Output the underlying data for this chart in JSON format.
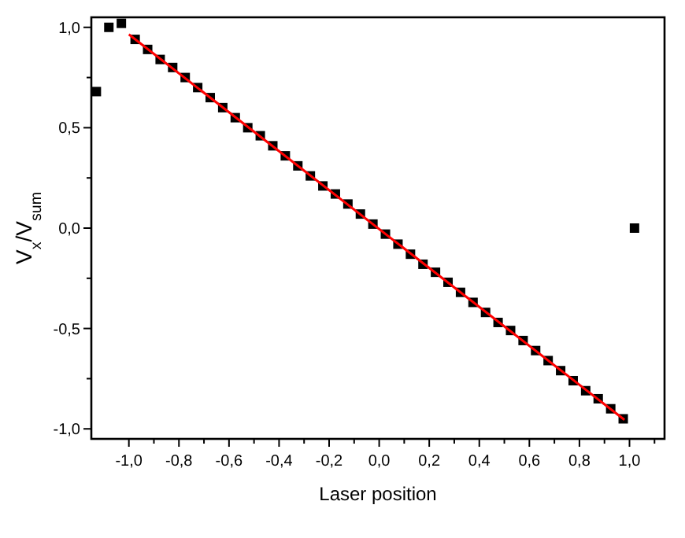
{
  "chart_data": {
    "type": "scatter",
    "xlabel": "Laser position",
    "ylabel": "V$_{x}$/V$_{sum}$",
    "xlim": [
      -1.15,
      1.14
    ],
    "ylim": [
      -1.05,
      1.05
    ],
    "xticks": [
      {
        "value": -1,
        "label": "-1,0"
      },
      {
        "value": -0.9,
        "label": null
      },
      {
        "value": -0.8,
        "label": "-0,8"
      },
      {
        "value": -0.7,
        "label": null
      },
      {
        "value": -0.6,
        "label": "-0,6"
      },
      {
        "value": -0.5,
        "label": null
      },
      {
        "value": -0.4,
        "label": "-0,4"
      },
      {
        "value": -0.3,
        "label": null
      },
      {
        "value": -0.2,
        "label": "-0,2"
      },
      {
        "value": -0.1,
        "label": null
      },
      {
        "value": 0,
        "label": "0,0"
      },
      {
        "value": 0.1,
        "label": null
      },
      {
        "value": 0.2,
        "label": "0,2"
      },
      {
        "value": 0.3,
        "label": null
      },
      {
        "value": 0.4,
        "label": "0,4"
      },
      {
        "value": 0.5,
        "label": null
      },
      {
        "value": 0.6,
        "label": "0,6"
      },
      {
        "value": 0.7,
        "label": null
      },
      {
        "value": 0.8,
        "label": "0,8"
      },
      {
        "value": 0.9,
        "label": null
      },
      {
        "value": 1,
        "label": "1,0"
      },
      {
        "value": 1.1,
        "label": null
      }
    ],
    "yticks": [
      {
        "value": -1,
        "label": "-1,0"
      },
      {
        "value": -0.75,
        "label": null
      },
      {
        "value": -0.5,
        "label": "-0,5"
      },
      {
        "value": -0.25,
        "label": null
      },
      {
        "value": 0,
        "label": "0,0"
      },
      {
        "value": 0.25,
        "label": null
      },
      {
        "value": 0.5,
        "label": "0,5"
      },
      {
        "value": 0.75,
        "label": null
      },
      {
        "value": 1,
        "label": "1,0"
      }
    ],
    "grid": false,
    "series": [
      {
        "color": "#000000",
        "marker": "square",
        "x": [
          -1.13,
          -1.08,
          -1.03,
          -0.975,
          -0.925,
          -0.875,
          -0.825,
          -0.775,
          -0.725,
          -0.675,
          -0.625,
          -0.575,
          -0.525,
          -0.475,
          -0.425,
          -0.375,
          -0.325,
          -0.275,
          -0.225,
          -0.175,
          -0.125,
          -0.075,
          -0.025,
          0.025,
          0.075,
          0.125,
          0.175,
          0.225,
          0.275,
          0.325,
          0.375,
          0.425,
          0.475,
          0.525,
          0.575,
          0.625,
          0.675,
          0.725,
          0.775,
          0.825,
          0.875,
          0.925,
          0.975,
          1.02
        ],
        "values": [
          0.68,
          1.0,
          1.02,
          0.94,
          0.89,
          0.84,
          0.8,
          0.75,
          0.7,
          0.65,
          0.6,
          0.55,
          0.5,
          0.46,
          0.41,
          0.36,
          0.31,
          0.26,
          0.21,
          0.17,
          0.12,
          0.07,
          0.02,
          -0.03,
          -0.08,
          -0.13,
          -0.18,
          -0.22,
          -0.27,
          -0.32,
          -0.37,
          -0.42,
          -0.47,
          -0.51,
          -0.56,
          -0.61,
          -0.66,
          -0.71,
          -0.76,
          -0.81,
          -0.85,
          -0.9,
          -0.95,
          0.0
        ]
      },
      {
        "type": "line",
        "color": "#ff0000",
        "marker": "none",
        "line_style": "solid",
        "x": [
          -1.0,
          0.98
        ],
        "values": [
          0.965,
          -0.955
        ]
      }
    ]
  }
}
